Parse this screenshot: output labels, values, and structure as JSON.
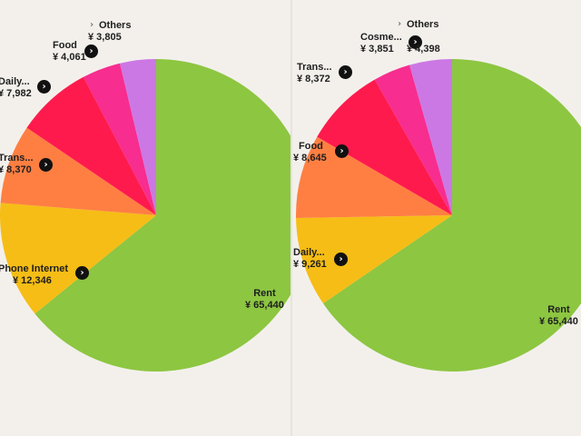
{
  "colors": {
    "background": "#f3f0ec",
    "green": "#8dc641",
    "yellow": "#f6bd16",
    "orange": "#ff7f42",
    "red": "#ff1a4d",
    "pink": "#f72d8f",
    "violet": "#cc78e4"
  },
  "left_chart": {
    "rent": {
      "name": "Rent",
      "value": "¥ 65,440"
    },
    "phone": {
      "name": "Phone Internet",
      "value": "¥ 12,346"
    },
    "trans": {
      "name": "Trans...",
      "value": "¥ 8,370"
    },
    "daily": {
      "name": "Daily...",
      "value": "¥ 7,982"
    },
    "food": {
      "name": "Food",
      "value": "¥ 4,061"
    },
    "others": {
      "name": "Others",
      "value": "¥ 3,805"
    }
  },
  "right_chart": {
    "rent": {
      "name": "Rent",
      "value": "¥ 65,440"
    },
    "daily": {
      "name": "Daily...",
      "value": "¥ 9,261"
    },
    "food": {
      "name": "Food",
      "value": "¥ 8,645"
    },
    "trans": {
      "name": "Trans...",
      "value": "¥ 8,372"
    },
    "cosme": {
      "name": "Cosme...",
      "value": "¥ 3,851"
    },
    "others": {
      "name": "Others",
      "value": "¥ 4,398"
    }
  },
  "chart_data": [
    {
      "type": "pie",
      "categories": [
        "Rent",
        "Phone Internet",
        "Trans...",
        "Daily...",
        "Food",
        "Others"
      ],
      "values": [
        65440,
        12346,
        8370,
        7982,
        4061,
        3805
      ],
      "colors": [
        "#8dc641",
        "#f6bd16",
        "#ff7f42",
        "#ff1a4d",
        "#f72d8f",
        "#cc78e4"
      ]
    },
    {
      "type": "pie",
      "categories": [
        "Rent",
        "Daily...",
        "Food",
        "Trans...",
        "Cosme...",
        "Others"
      ],
      "values": [
        65440,
        9261,
        8645,
        8372,
        3851,
        4398
      ],
      "colors": [
        "#8dc641",
        "#f6bd16",
        "#ff7f42",
        "#ff1a4d",
        "#f72d8f",
        "#cc78e4"
      ]
    }
  ]
}
